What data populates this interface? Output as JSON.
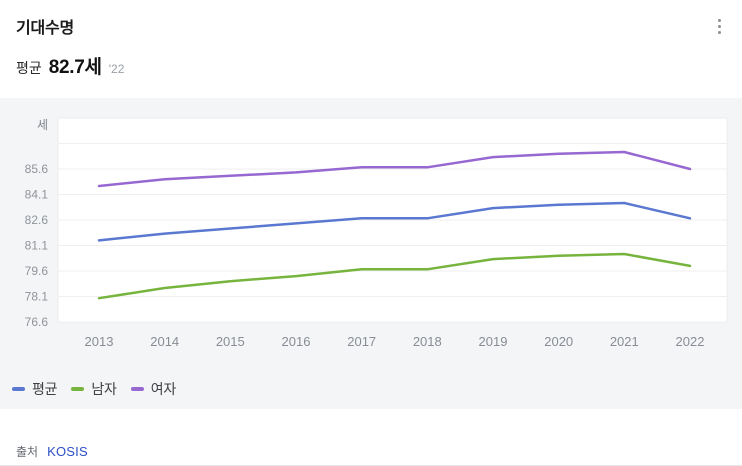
{
  "header": {
    "title": "기대수명",
    "subtitle_label": "평균",
    "value": "82.7세",
    "year_badge": "'22",
    "menu_icon": "kebab-menu-icon"
  },
  "chart_data": {
    "type": "line",
    "title": "기대수명",
    "unit_label": "세",
    "x": [
      2013,
      2014,
      2015,
      2016,
      2017,
      2018,
      2019,
      2020,
      2021,
      2022
    ],
    "series": [
      {
        "name": "평균",
        "color": "#5b78d1",
        "values": [
          81.4,
          81.8,
          82.1,
          82.4,
          82.7,
          82.7,
          83.3,
          83.5,
          83.6,
          82.7
        ]
      },
      {
        "name": "남자",
        "color": "#77b43e",
        "values": [
          78.0,
          78.6,
          79.0,
          79.3,
          79.7,
          79.7,
          80.3,
          80.5,
          80.6,
          79.9
        ]
      },
      {
        "name": "여자",
        "color": "#9768d1",
        "values": [
          84.6,
          85.0,
          85.2,
          85.4,
          85.7,
          85.7,
          86.3,
          86.5,
          86.6,
          85.6
        ]
      }
    ],
    "ylim": [
      76.6,
      88.6
    ],
    "ytick_step": 1.5,
    "yticks_labeled": [
      76.6,
      78.1,
      79.6,
      81.1,
      82.6,
      84.1,
      85.6
    ],
    "grid": "horizontal",
    "legend_position": "bottom-left",
    "colors": {
      "panel_bg": "#f4f5f7",
      "plot_bg": "#ffffff",
      "plot_border": "#ececee",
      "gridline": "#efefef",
      "ytick_text": "#8f939a",
      "xtick_text": "#888c94",
      "unit_text": "#80858d"
    }
  },
  "footer": {
    "source_label": "출처",
    "source_link": "KOSIS",
    "link_color": "#2e50c6"
  }
}
